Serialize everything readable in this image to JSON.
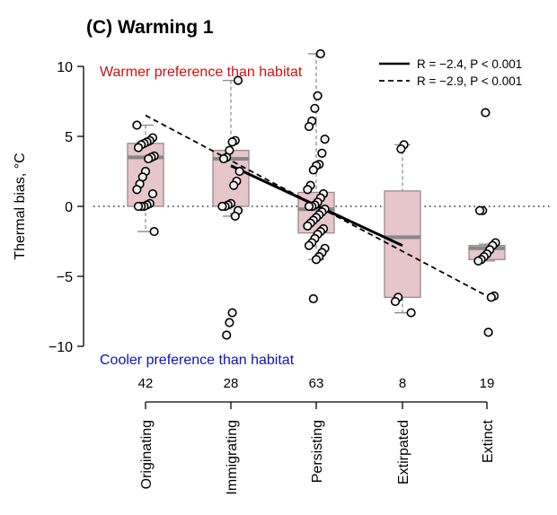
{
  "chart_data": {
    "type": "boxplot",
    "title": "(C) Warming 1",
    "ylabel": "Thermal bias, °C",
    "ylim": [
      -10,
      11
    ],
    "yticks": [
      -10,
      -5,
      0,
      5,
      10
    ],
    "ytick_labels": [
      "−10",
      "−5",
      "0",
      "5",
      "10"
    ],
    "reference_line": 0,
    "annotations": {
      "top": "Warmer preference than habitat",
      "bottom": "Cooler preference than habitat",
      "top_color": "#cc1111",
      "bottom_color": "#1111bb"
    },
    "legend": [
      {
        "label": "R = −2.4, P < 0.001",
        "style": "solid"
      },
      {
        "label": "R = −2.9, P < 0.001",
        "style": "dashed"
      }
    ],
    "categories": [
      {
        "name": "Originating",
        "n": "42",
        "box": {
          "min": -1.8,
          "q1": 0,
          "median": 3.5,
          "q3": 4.5,
          "max": 5.8
        },
        "points": [
          5.8,
          4.9,
          4.7,
          4.6,
          4.5,
          4.4,
          4.2,
          3.6,
          3.5,
          3.4,
          2.5,
          2.1,
          1.6,
          1.2,
          0.9,
          0.2,
          0.1,
          0,
          0,
          0,
          -1.8
        ]
      },
      {
        "name": "Immigrating",
        "n": "28",
        "box": {
          "min": -0.7,
          "q1": 0,
          "median": 3.4,
          "q3": 4.0,
          "max": 9.0
        },
        "points": [
          9.0,
          4.7,
          4.6,
          4.0,
          3.5,
          3.4,
          2.5,
          1.8,
          1.5,
          0.2,
          0.1,
          0,
          0,
          -0.3,
          -0.7,
          -7.6,
          -8.3,
          -9.2
        ]
      },
      {
        "name": "Persisting",
        "n": "63",
        "box": {
          "min": -3.8,
          "q1": -1.9,
          "median": -0.2,
          "q3": 1.0,
          "max": 10.9
        },
        "points": [
          10.9,
          7.9,
          7.0,
          6.1,
          5.7,
          4.8,
          3.8,
          3.0,
          2.9,
          2.6,
          1.5,
          1.2,
          0.9,
          0.6,
          0.3,
          0.1,
          0,
          0,
          -0.2,
          -0.4,
          -0.6,
          -0.8,
          -1.0,
          -1.2,
          -1.4,
          -1.6,
          -1.8,
          -2.0,
          -2.3,
          -2.6,
          -2.8,
          -3.0,
          -3.3,
          -3.6,
          -3.8,
          -6.6
        ]
      },
      {
        "name": "Extirpated",
        "n": "8",
        "box": {
          "min": -7.6,
          "q1": -6.5,
          "median": -2.2,
          "q3": 1.1,
          "max": 4.4
        },
        "points": [
          4.4,
          4.1,
          -6.5,
          -6.8,
          -7.6
        ]
      },
      {
        "name": "Extinct",
        "n": "19",
        "box": {
          "min": -3.9,
          "q1": -3.8,
          "median": -3.0,
          "q3": -2.8,
          "max": -2.7
        },
        "points": [
          6.7,
          -0.3,
          -0.3,
          -2.6,
          -2.8,
          -3.1,
          -3.4,
          -3.6,
          -3.8,
          -3.9,
          -6.4,
          -6.5,
          -9.0
        ]
      }
    ],
    "regressions": [
      {
        "style": "solid",
        "from": {
          "category": "Immigrating",
          "y": 2.9
        },
        "to": {
          "category": "Extirpated",
          "y": -2.8
        }
      },
      {
        "style": "dashed",
        "from": {
          "category": "Originating",
          "y": 6.5
        },
        "to": {
          "category": "Extinct",
          "y": -6.4
        }
      }
    ],
    "colors": {
      "box_fill": "#e6c5cb",
      "box_edge": "#9a8a8e",
      "median": "#888888",
      "whisker": "#888888",
      "point_edge": "#000000"
    }
  }
}
